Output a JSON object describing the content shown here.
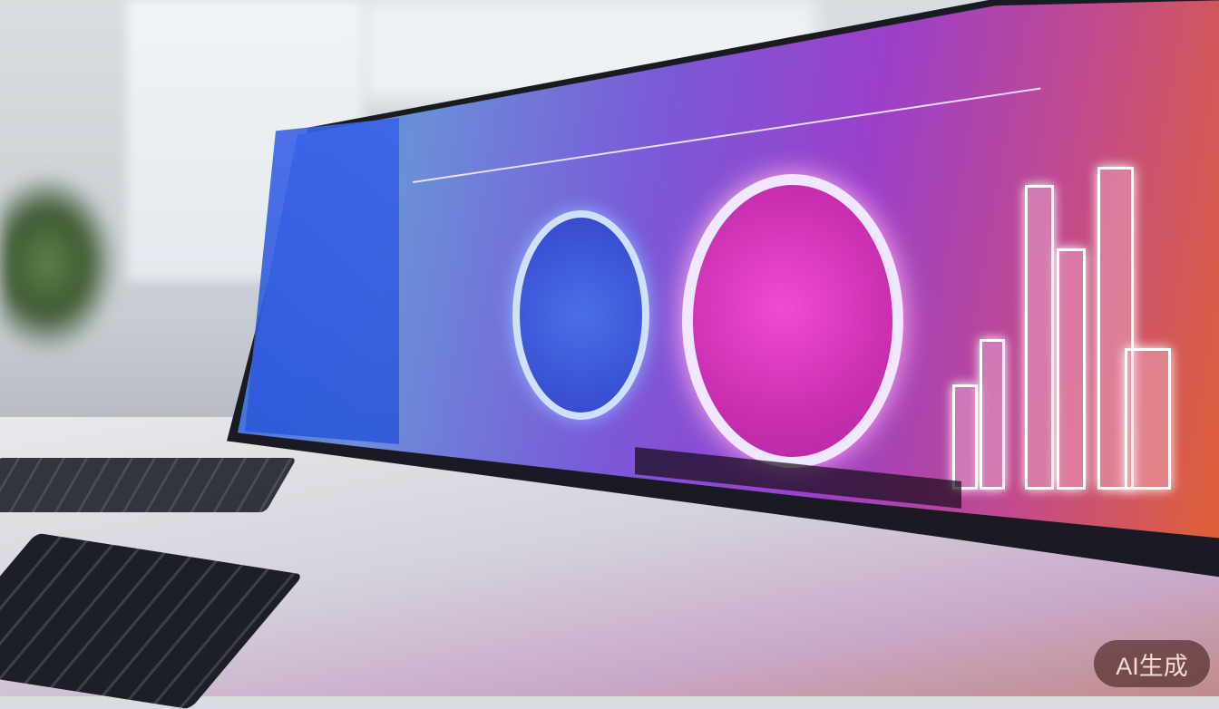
{
  "scene": {
    "description_colors": {
      "accent_blue": "#3a62e8",
      "accent_magenta": "#e03fc8",
      "accent_orange": "#e2622e"
    }
  },
  "watermark": {
    "text": "AI生成"
  }
}
